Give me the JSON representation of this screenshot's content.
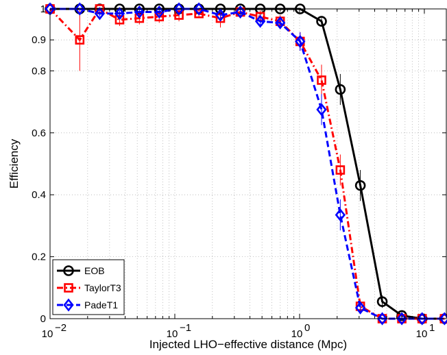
{
  "chart_data": {
    "type": "line",
    "title": "",
    "xlabel": "Injected LHO−effective distance (Mpc)",
    "ylabel": "Efficiency",
    "xscale": "log",
    "xlim": [
      0.01,
      15
    ],
    "ylim": [
      0,
      1
    ],
    "grid": true,
    "legend_position": "bottom-left",
    "x": [
      0.01,
      0.0173,
      0.025,
      0.0361,
      0.052,
      0.075,
      0.108,
      0.156,
      0.232,
      0.335,
      0.484,
      0.699,
      1.01,
      1.5,
      2.12,
      3.07,
      4.6,
      6.6,
      9.6,
      14.5
    ],
    "x_ticks": [
      {
        "value": 0.01,
        "base": "10",
        "exp": "−2"
      },
      {
        "value": 0.1,
        "base": "10",
        "exp": "−1"
      },
      {
        "value": 1,
        "base": "10",
        "exp": "0"
      },
      {
        "value": 10,
        "base": "10",
        "exp": "1"
      }
    ],
    "y_ticks": [
      {
        "value": 0,
        "label": "0"
      },
      {
        "value": 0.2,
        "label": "0.2"
      },
      {
        "value": 0.4,
        "label": "0.4"
      },
      {
        "value": 0.6,
        "label": "0.6"
      },
      {
        "value": 0.8,
        "label": "0.8"
      },
      {
        "value": 0.9,
        "label": "0.9"
      },
      {
        "value": 1,
        "label": "1"
      }
    ],
    "series": [
      {
        "name": "EOB",
        "color": "#000000",
        "line_style": "solid",
        "marker": "circle",
        "values": [
          1,
          1,
          1,
          1,
          1,
          1,
          1,
          1,
          1,
          1,
          1,
          1,
          1,
          0.96,
          0.74,
          0.43,
          0.055,
          0.01,
          0.0,
          0.0
        ],
        "errors": [
          0,
          0,
          0,
          0,
          0,
          0,
          0,
          0,
          0,
          0,
          0,
          0,
          0,
          0.01,
          0.05,
          0.05,
          0.02,
          0.01,
          0,
          0
        ]
      },
      {
        "name": "TaylorT3",
        "color": "#ff0000",
        "line_style": "dashdot",
        "marker": "square",
        "values": [
          1,
          0.9,
          1,
          0.965,
          0.97,
          0.975,
          0.98,
          0.985,
          0.97,
          0.99,
          0.975,
          0.96,
          0.895,
          0.77,
          0.48,
          0.04,
          0.0,
          0.0,
          0.0,
          0.0
        ],
        "errors": [
          0,
          0.1,
          0,
          0.02,
          0.02,
          0.02,
          0.02,
          0.01,
          0.03,
          0.01,
          0.02,
          0.02,
          0.03,
          0.05,
          0.05,
          0.02,
          0,
          0,
          0,
          0
        ]
      },
      {
        "name": "PadeT1",
        "color": "#0000ff",
        "line_style": "dashed",
        "marker": "diamond",
        "values": [
          1,
          1,
          0.985,
          0.985,
          0.99,
          0.99,
          1,
          1,
          0.98,
          0.99,
          0.96,
          0.955,
          0.895,
          0.675,
          0.335,
          0.035,
          0.0,
          0.0,
          0.0,
          0.0
        ],
        "errors": [
          0,
          0,
          0.01,
          0.01,
          0.01,
          0.01,
          0,
          0,
          0.01,
          0.01,
          0.02,
          0.02,
          0.03,
          0.05,
          0.05,
          0.02,
          0,
          0,
          0,
          0
        ]
      }
    ]
  }
}
